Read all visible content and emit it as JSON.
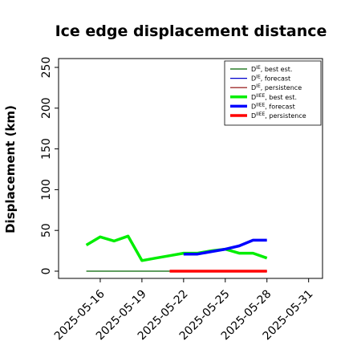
{
  "chart_data": {
    "type": "line",
    "title": "Ice edge displacement distance",
    "xlabel": "",
    "ylabel": "Displacement (km)",
    "ylim": [
      0,
      260
    ],
    "xlim": [
      "2025-05-13",
      "2025-06-01"
    ],
    "yticks": [
      0,
      50,
      100,
      150,
      200,
      250
    ],
    "xticks": [
      {
        "label": "2025-05-16",
        "color": "#000000"
      },
      {
        "label": "2025-05-19",
        "color": "#000000"
      },
      {
        "label": "2025-05-22",
        "color": "#1a8f1a"
      },
      {
        "label": "2025-05-25",
        "color": "#000000"
      },
      {
        "label": "2025-05-28",
        "color": "#000000"
      },
      {
        "label": "2025-05-31",
        "color": "#000000"
      }
    ],
    "legend_position": "top-right",
    "grid": false,
    "series": [
      {
        "name": "DIE, best est.",
        "base": "D",
        "sup": "IE",
        "suffix": ", best est.",
        "color": "#006400",
        "width": 1.2,
        "x": [
          "2025-05-15",
          "2025-05-16",
          "2025-05-17",
          "2025-05-18",
          "2025-05-19",
          "2025-05-20",
          "2025-05-21",
          "2025-05-22"
        ],
        "y": [
          0,
          0,
          0,
          0,
          0,
          0,
          0,
          0
        ]
      },
      {
        "name": "DIE, forecast",
        "base": "D",
        "sup": "IE",
        "suffix": ", forecast",
        "color": "#0000cd",
        "width": 1.2,
        "x": [
          "2025-05-22",
          "2025-05-23",
          "2025-05-24",
          "2025-05-25",
          "2025-05-26",
          "2025-05-27",
          "2025-05-28"
        ],
        "y": [
          0,
          0,
          0,
          0,
          0,
          0,
          0
        ]
      },
      {
        "name": "DIE, persistence",
        "base": "D",
        "sup": "IE",
        "suffix": ", persistence",
        "color": "#8b0000",
        "width": 1.2,
        "x": [
          "2025-05-21",
          "2025-05-22",
          "2025-05-23",
          "2025-05-24",
          "2025-05-25",
          "2025-05-26",
          "2025-05-27",
          "2025-05-28"
        ],
        "y": [
          0,
          0,
          0,
          0,
          0,
          0,
          0,
          0
        ]
      },
      {
        "name": "DIIEE, best est.",
        "base": "D",
        "sup": "IIEE",
        "suffix": ", best est.",
        "color": "#00ee00",
        "width": 3.5,
        "x": [
          "2025-05-15",
          "2025-05-16",
          "2025-05-17",
          "2025-05-18",
          "2025-05-19",
          "2025-05-20",
          "2025-05-21",
          "2025-05-22",
          "2025-05-23",
          "2025-05-24",
          "2025-05-25",
          "2025-05-26",
          "2025-05-27",
          "2025-05-28"
        ],
        "y": [
          32,
          42,
          37,
          43,
          13,
          16,
          19,
          22,
          22,
          25,
          27,
          22,
          22,
          16
        ]
      },
      {
        "name": "DIIEE, forecast",
        "base": "D",
        "sup": "IIEE",
        "suffix": ", forecast",
        "color": "#0000ff",
        "width": 3.5,
        "x": [
          "2025-05-22",
          "2025-05-23",
          "2025-05-24",
          "2025-05-25",
          "2025-05-26",
          "2025-05-27",
          "2025-05-28"
        ],
        "y": [
          21,
          21,
          24,
          27,
          31,
          38,
          38
        ]
      },
      {
        "name": "DIIEE, persistence",
        "base": "D",
        "sup": "IIEE",
        "suffix": ", persistence",
        "color": "#ff0000",
        "width": 3.5,
        "x": [
          "2025-05-21",
          "2025-05-22",
          "2025-05-23",
          "2025-05-24",
          "2025-05-25",
          "2025-05-26",
          "2025-05-27",
          "2025-05-28"
        ],
        "y": [
          0,
          0,
          0,
          0,
          0,
          0,
          0,
          0
        ]
      }
    ]
  }
}
